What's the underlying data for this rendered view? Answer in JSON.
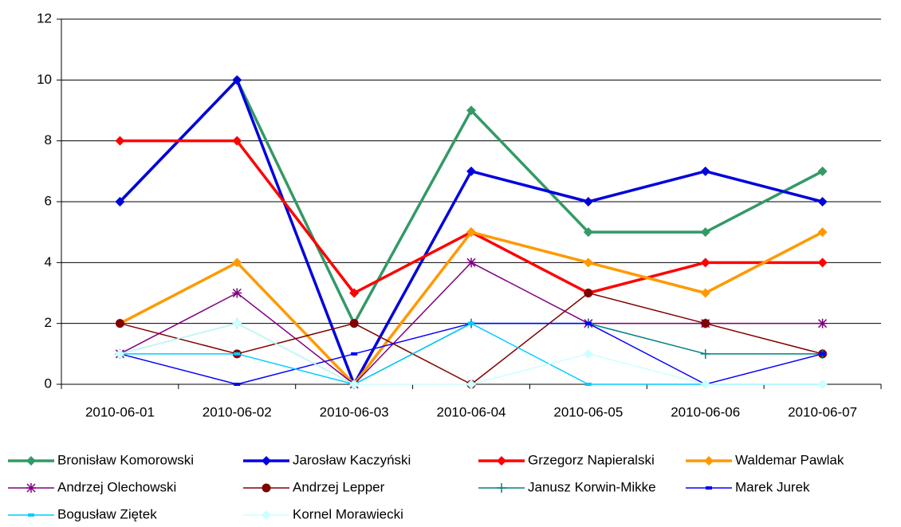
{
  "chart_data": {
    "type": "line",
    "categories": [
      "2010-06-01",
      "2010-06-02",
      "2010-06-03",
      "2010-06-04",
      "2010-06-05",
      "2010-06-06",
      "2010-06-07"
    ],
    "ylim": [
      0,
      12
    ],
    "yticks": [
      0,
      2,
      4,
      6,
      8,
      10,
      12
    ],
    "grid": true,
    "legend": "bottom",
    "series": [
      {
        "name": "Bronisław Komorowski",
        "color": "#339966",
        "marker": "diamond",
        "values": [
          6,
          10,
          2,
          9,
          5,
          5,
          7
        ]
      },
      {
        "name": "Jarosław Kaczyński",
        "color": "#0000dd",
        "marker": "diamond",
        "values": [
          6,
          10,
          0,
          7,
          6,
          7,
          6
        ]
      },
      {
        "name": "Grzegorz Napieralski",
        "color": "#ff0000",
        "marker": "diamond",
        "values": [
          8,
          8,
          3,
          5,
          3,
          4,
          4
        ]
      },
      {
        "name": "Waldemar Pawlak",
        "color": "#ff9900",
        "marker": "diamond",
        "values": [
          2,
          4,
          0,
          5,
          4,
          3,
          5
        ]
      },
      {
        "name": "Andrzej Olechowski",
        "color": "#800080",
        "marker": "asterisk",
        "values": [
          1,
          3,
          0,
          4,
          2,
          2,
          2
        ]
      },
      {
        "name": "Andrzej Lepper",
        "color": "#800000",
        "marker": "circle",
        "values": [
          2,
          1,
          2,
          0,
          3,
          2,
          1
        ]
      },
      {
        "name": "Janusz Korwin-Mikke",
        "color": "#008080",
        "marker": "plus",
        "values": [
          1,
          2,
          0,
          2,
          2,
          1,
          1
        ]
      },
      {
        "name": "Marek Jurek",
        "color": "#0000ff",
        "marker": "dash",
        "values": [
          1,
          0,
          1,
          2,
          2,
          0,
          1
        ]
      },
      {
        "name": "Bogusław Ziętek",
        "color": "#00ccff",
        "marker": "square",
        "values": [
          1,
          1,
          0,
          2,
          0,
          0,
          0
        ]
      },
      {
        "name": "Kornel Morawiecki",
        "color": "#ccffff",
        "marker": "diamond",
        "values": [
          1,
          2,
          0,
          0,
          1,
          0,
          0
        ]
      }
    ]
  }
}
